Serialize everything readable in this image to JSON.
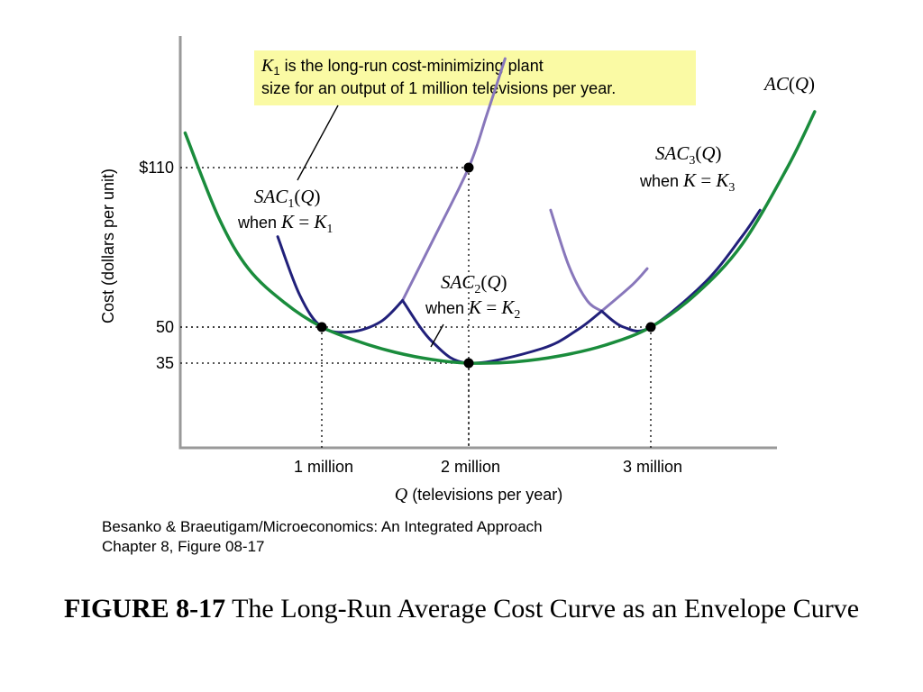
{
  "chart_data": {
    "type": "line",
    "xlabel": {
      "var": "Q",
      "text": " (televisions per year)"
    },
    "ylabel": "Cost (dollars per unit)",
    "x_ticks": [
      {
        "x": 1,
        "label": "1 million"
      },
      {
        "x": 2,
        "label": "2 million"
      },
      {
        "x": 3,
        "label": "3 million"
      }
    ],
    "y_ticks": [
      {
        "y": 110,
        "label": "$110"
      },
      {
        "y": 50,
        "label": "50"
      },
      {
        "y": 35,
        "label": "35"
      }
    ],
    "curves": [
      {
        "name": "AC(Q)",
        "color": "#1a8c3c",
        "points": [
          [
            0.07,
            123
          ],
          [
            0.3,
            91
          ],
          [
            0.5,
            72
          ],
          [
            0.75,
            59
          ],
          [
            1,
            50
          ],
          [
            1.25,
            44
          ],
          [
            1.5,
            39.5
          ],
          [
            1.75,
            36.5
          ],
          [
            2,
            35
          ],
          [
            2.25,
            35.5
          ],
          [
            2.5,
            38
          ],
          [
            2.75,
            42.5
          ],
          [
            3,
            50
          ],
          [
            3.25,
            62.5
          ],
          [
            3.5,
            81
          ],
          [
            3.75,
            110
          ],
          [
            3.9,
            131
          ]
        ]
      },
      {
        "name": "SAC1(Q)",
        "color": "#21207a",
        "points": [
          [
            0.7,
            84
          ],
          [
            0.85,
            62
          ],
          [
            1,
            50
          ],
          [
            1.2,
            48
          ],
          [
            1.4,
            52
          ],
          [
            1.55,
            60
          ]
        ]
      },
      {
        "name": "SAC1(Q) continued",
        "color": "#8877bb",
        "points": [
          [
            1.55,
            60
          ],
          [
            1.75,
            82
          ],
          [
            2,
            110
          ],
          [
            2.1,
            130
          ],
          [
            2.2,
            151
          ]
        ]
      },
      {
        "name": "SAC2(Q)",
        "color": "#21207a",
        "points": [
          [
            1.55,
            60
          ],
          [
            1.75,
            44
          ],
          [
            2,
            35
          ],
          [
            2.4,
            41
          ],
          [
            2.6,
            49
          ],
          [
            2.73,
            56
          ]
        ]
      },
      {
        "name": "SAC2(Q) continued",
        "color": "#8877bb",
        "points": [
          [
            2.73,
            56
          ],
          [
            2.9,
            66
          ],
          [
            2.98,
            72
          ]
        ]
      },
      {
        "name": "SAC3(Q) left",
        "color": "#8877bb",
        "points": [
          [
            2.45,
            94
          ],
          [
            2.55,
            73
          ],
          [
            2.65,
            60
          ],
          [
            2.73,
            56
          ]
        ]
      },
      {
        "name": "SAC3(Q)",
        "color": "#21207a",
        "points": [
          [
            2.73,
            56
          ],
          [
            2.85,
            50
          ],
          [
            3,
            50
          ],
          [
            3.3,
            67
          ],
          [
            3.5,
            84
          ],
          [
            3.6,
            94
          ]
        ]
      }
    ],
    "points": [
      {
        "x": 1,
        "y": 50
      },
      {
        "x": 2,
        "y": 110
      },
      {
        "x": 2,
        "y": 35
      },
      {
        "x": 3,
        "y": 50
      }
    ],
    "annotations": {
      "callout": {
        "line1_suffix": " is the long-run cost-minimizing plant",
        "line2": "size for an output of 1 million televisions per year."
      },
      "ac_label": "AC(Q)",
      "sac1": {
        "when": "when "
      },
      "sac2": {
        "when": "when "
      },
      "sac3": {
        "when": "when "
      }
    }
  },
  "source": {
    "line1": "Besanko & Braeutigam/Microeconomics: An Integrated Approach",
    "line2": "Chapter 8, Figure 08-17"
  },
  "caption": {
    "bold": "FIGURE 8-17",
    "rest": " The Long-Run Average Cost Curve as an Envelope Curve"
  }
}
